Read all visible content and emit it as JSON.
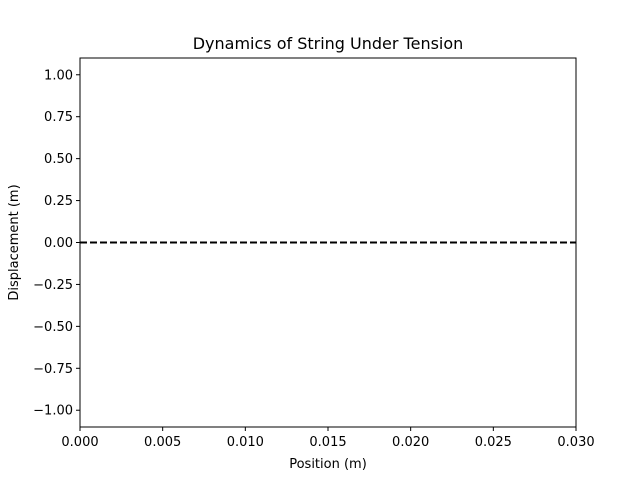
{
  "chart_data": {
    "type": "line",
    "title": "Dynamics of String Under Tension",
    "xlabel": "Position (m)",
    "ylabel": "Displacement (m)",
    "xlim": [
      0.0,
      0.03
    ],
    "ylim": [
      -1.1,
      1.1
    ],
    "x_ticks": [
      "0.000",
      "0.005",
      "0.010",
      "0.015",
      "0.020",
      "0.025",
      "0.030"
    ],
    "y_ticks": [
      "1.00",
      "0.75",
      "0.50",
      "0.25",
      "0.00",
      "−0.25",
      "−0.50",
      "−0.75",
      "−1.00"
    ],
    "grid": false,
    "series": [
      {
        "line_style": "dashed",
        "color": "#000000",
        "x": [
          0.0,
          0.03
        ],
        "y": [
          0.0,
          0.0
        ]
      }
    ]
  }
}
